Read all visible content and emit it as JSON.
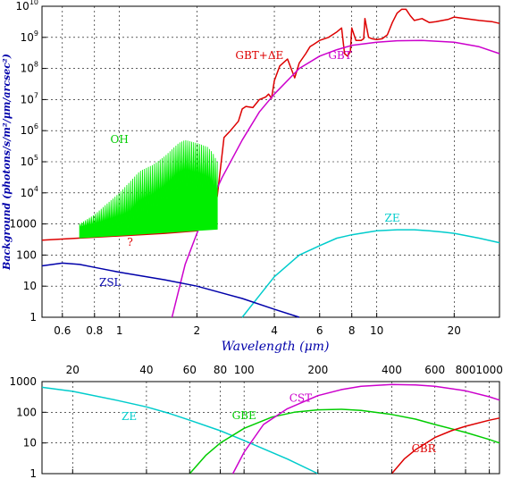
{
  "chart_data": [
    {
      "type": "line",
      "xscale": "log",
      "yscale": "log",
      "xlim": [
        0.5,
        30
      ],
      "ylim": [
        1,
        10000000000
      ],
      "grid": true,
      "xlabel": "Wavelength (μm)",
      "ylabel": "Background (photons/s/m²/μm/arcsec²)",
      "x_ticks": [
        {
          "v": 0.6,
          "label": "0.6"
        },
        {
          "v": 0.8,
          "label": "0.8"
        },
        {
          "v": 1,
          "label": "1"
        },
        {
          "v": 2,
          "label": "2"
        },
        {
          "v": 4,
          "label": "4"
        },
        {
          "v": 6,
          "label": "6"
        },
        {
          "v": 8,
          "label": "8"
        },
        {
          "v": 10,
          "label": "10"
        },
        {
          "v": 20,
          "label": "20"
        }
      ],
      "y_ticks": [
        {
          "v": 1,
          "base": "1",
          "exp": ""
        },
        {
          "v": 10,
          "base": "10",
          "exp": ""
        },
        {
          "v": 100,
          "base": "100",
          "exp": ""
        },
        {
          "v": 1000,
          "base": "1000",
          "exp": ""
        },
        {
          "v": 10000,
          "base": "10",
          "exp": "4"
        },
        {
          "v": 100000,
          "base": "10",
          "exp": "5"
        },
        {
          "v": 1000000,
          "base": "10",
          "exp": "6"
        },
        {
          "v": 10000000,
          "base": "10",
          "exp": "7"
        },
        {
          "v": 100000000,
          "base": "10",
          "exp": "8"
        },
        {
          "v": 1000000000,
          "base": "10",
          "exp": "9"
        },
        {
          "v": 10000000000,
          "base": "10",
          "exp": "10"
        }
      ],
      "series": [
        {
          "name": "GBT+ΔE",
          "color": "#dd0000",
          "x": [
            0.5,
            1.5,
            2.0,
            2.1,
            2.2,
            2.3,
            2.4,
            2.55,
            2.7,
            2.9,
            3.0,
            3.1,
            3.3,
            3.5,
            3.7,
            3.8,
            3.9,
            4.0,
            4.2,
            4.5,
            4.8,
            5.0,
            5.3,
            5.5,
            5.7,
            6.0,
            6.5,
            7.0,
            7.3,
            7.5,
            7.7,
            7.9,
            8.0,
            8.3,
            8.5,
            8.7,
            8.9,
            9.0,
            9.3,
            9.6,
            10.0,
            10.5,
            11.0,
            11.5,
            12.0,
            12.5,
            13.0,
            13.5,
            14.0,
            15.0,
            16.0,
            17.0,
            18.0,
            19.0,
            20.0,
            22.0,
            25.0,
            28.0,
            30.0
          ],
          "y": [
            300,
            500,
            600,
            800,
            1000,
            2000,
            8000,
            600000,
            1000000,
            2000000,
            5000000,
            6000000,
            5500000,
            10000000,
            12000000,
            15000000,
            11000000,
            40000000,
            120000000,
            200000000,
            50000000,
            150000000,
            300000000,
            500000000,
            600000000,
            800000000,
            1000000000,
            1500000000,
            2000000000,
            300000000,
            250000000,
            350000000,
            2000000000,
            800000000,
            800000000,
            800000000,
            900000000,
            4000000000,
            1000000000,
            900000000,
            850000000,
            900000000,
            1200000000,
            3000000000,
            6000000000,
            8000000000,
            8000000000,
            5000000000,
            3500000000,
            4000000000,
            3000000000,
            3200000000,
            3500000000,
            3800000000,
            4500000000,
            4000000000,
            3500000000,
            3200000000,
            2800000000
          ]
        },
        {
          "name": "GBT",
          "color": "#cc00cc",
          "x": [
            1.6,
            1.8,
            2.0,
            2.2,
            2.5,
            3.0,
            3.5,
            4.0,
            5.0,
            6.0,
            7.0,
            8.0,
            10.0,
            12.0,
            15.0,
            20.0,
            25.0,
            30.0
          ],
          "y": [
            1,
            50,
            500,
            3000,
            30000,
            500000,
            4000000,
            15000000,
            100000000,
            250000000,
            400000000,
            550000000,
            700000000,
            780000000,
            800000000,
            700000000,
            500000000,
            300000000
          ]
        },
        {
          "name": "ZE",
          "color": "#00cccc",
          "x": [
            3.0,
            3.5,
            4.0,
            5.0,
            6.0,
            7.0,
            8.0,
            10.0,
            12.0,
            14.0,
            16.0,
            18.0,
            20.0,
            25.0,
            30.0
          ],
          "y": [
            1,
            5,
            20,
            100,
            200,
            350,
            450,
            600,
            650,
            650,
            600,
            550,
            500,
            350,
            250
          ]
        },
        {
          "name": "ZSL",
          "color": "#0000aa",
          "x": [
            0.5,
            0.6,
            0.7,
            0.8,
            1.0,
            1.5,
            2.0,
            3.0,
            4.0,
            5.0
          ],
          "y": [
            45,
            55,
            50,
            40,
            28,
            16,
            10,
            4,
            1.8,
            1
          ]
        },
        {
          "name": "OH",
          "color": "#00ee00",
          "x": [
            0.7,
            0.8,
            1.0,
            1.2,
            1.35,
            1.5,
            1.6,
            1.7,
            1.8,
            2.0,
            2.2,
            2.3,
            2.4,
            2.5
          ],
          "y": [
            1000,
            2000,
            10000,
            50000,
            80000,
            150000,
            250000,
            400000,
            500000,
            400000,
            300000,
            200000,
            100000,
            50000
          ]
        }
      ],
      "annotations": [
        {
          "text": "GBT+ΔE",
          "color": "#dd0000",
          "x": 3.5,
          "y": 200000000
        },
        {
          "text": "GBT",
          "color": "#cc00cc",
          "x": 7.2,
          "y": 200000000
        },
        {
          "text": "OH",
          "color": "#00cc00",
          "x": 1.0,
          "y": 400000
        },
        {
          "text": "?",
          "color": "#dd0000",
          "x": 1.1,
          "y": 200
        },
        {
          "text": "ZE",
          "color": "#00cccc",
          "x": 11.5,
          "y": 1200
        },
        {
          "text": "ZSL",
          "color": "#0000aa",
          "x": 0.92,
          "y": 10
        }
      ]
    },
    {
      "type": "line",
      "xscale": "log",
      "yscale": "log",
      "xlim": [
        15,
        1100
      ],
      "ylim": [
        1,
        1000
      ],
      "grid": true,
      "x_ticks": [
        {
          "v": 20,
          "label": "20"
        },
        {
          "v": 40,
          "label": "40"
        },
        {
          "v": 60,
          "label": "60"
        },
        {
          "v": 80,
          "label": "80"
        },
        {
          "v": 100,
          "label": "100"
        },
        {
          "v": 200,
          "label": "200"
        },
        {
          "v": 400,
          "label": "400"
        },
        {
          "v": 600,
          "label": "600"
        },
        {
          "v": 800,
          "label": "800"
        },
        {
          "v": 1000,
          "label": "1000"
        }
      ],
      "y_ticks": [
        {
          "v": 1,
          "base": "1",
          "exp": ""
        },
        {
          "v": 10,
          "base": "10",
          "exp": ""
        },
        {
          "v": 100,
          "base": "100",
          "exp": ""
        },
        {
          "v": 1000,
          "base": "1000",
          "exp": ""
        }
      ],
      "series": [
        {
          "name": "ZE",
          "color": "#00cccc",
          "x": [
            15,
            20,
            30,
            40,
            50,
            60,
            80,
            100,
            150,
            200
          ],
          "y": [
            650,
            480,
            250,
            150,
            90,
            55,
            25,
            12,
            3,
            1
          ]
        },
        {
          "name": "GBE",
          "color": "#00cc00",
          "x": [
            60,
            70,
            80,
            100,
            130,
            160,
            200,
            250,
            300,
            400,
            500,
            600,
            800,
            1000,
            1100
          ],
          "y": [
            1,
            4,
            10,
            30,
            70,
            100,
            120,
            125,
            115,
            85,
            60,
            40,
            22,
            13,
            10
          ]
        },
        {
          "name": "CST",
          "color": "#cc00cc",
          "x": [
            90,
            100,
            120,
            150,
            200,
            250,
            300,
            400,
            500,
            600,
            800,
            1000,
            1100
          ],
          "y": [
            1,
            5,
            40,
            130,
            350,
            550,
            700,
            800,
            780,
            700,
            500,
            320,
            250
          ]
        },
        {
          "name": "CBR",
          "color": "#dd0000",
          "x": [
            400,
            450,
            500,
            600,
            700,
            800,
            1000,
            1100
          ],
          "y": [
            1,
            3,
            6,
            15,
            25,
            35,
            55,
            65
          ]
        }
      ],
      "annotations": [
        {
          "text": "ZE",
          "color": "#00cccc",
          "x": 34,
          "y": 55
        },
        {
          "text": "GBE",
          "color": "#00cc00",
          "x": 100,
          "y": 60
        },
        {
          "text": "CST",
          "color": "#cc00cc",
          "x": 170,
          "y": 220
        },
        {
          "text": "CBR",
          "color": "#dd0000",
          "x": 540,
          "y": 5
        }
      ]
    }
  ]
}
